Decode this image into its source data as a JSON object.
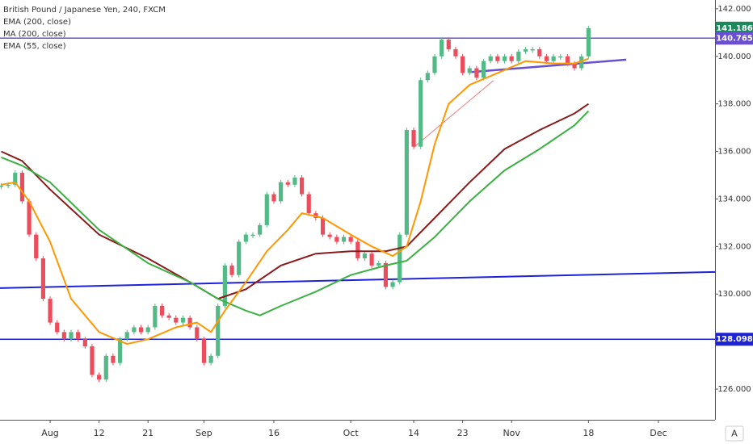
{
  "chart_data": {
    "type": "line",
    "title": "British Pound / Japanese Yen, 240, FXCM",
    "xlim": [
      -7.17,
      95.1
    ],
    "ylim": [
      124.71,
      142.37
    ],
    "yticks": [
      {
        "value": 126,
        "label": "126.000"
      },
      {
        "value": 128,
        "label": "128.000"
      },
      {
        "value": 130,
        "label": "130.000"
      },
      {
        "value": 132,
        "label": "132.000"
      },
      {
        "value": 134,
        "label": "134.000"
      },
      {
        "value": 136,
        "label": "136.000"
      },
      {
        "value": 138,
        "label": "138.000"
      },
      {
        "value": 140,
        "label": "140.000"
      },
      {
        "value": 142,
        "label": "142.000"
      }
    ],
    "xticks": [
      {
        "value": 0,
        "label": "Aug"
      },
      {
        "value": 7,
        "label": "12"
      },
      {
        "value": 14,
        "label": "21"
      },
      {
        "value": 22,
        "label": "Sep"
      },
      {
        "value": 32,
        "label": "16"
      },
      {
        "value": 43,
        "label": "Oct"
      },
      {
        "value": 52,
        "label": "14"
      },
      {
        "value": 59,
        "label": "23"
      },
      {
        "value": 66,
        "label": "Nov"
      },
      {
        "value": 77,
        "label": "18"
      },
      {
        "value": 87,
        "label": "Dec"
      }
    ],
    "grid": false,
    "series": [
      {
        "style": "candles",
        "up_color": "#53b987",
        "down_color": "#eb4d5c",
        "x": [
          -7,
          -6,
          -5,
          -4,
          -3,
          -2,
          -1,
          0,
          1,
          2,
          3,
          4,
          5,
          6,
          7,
          8,
          9,
          10,
          11,
          12,
          13,
          14,
          15,
          16,
          17,
          18,
          19,
          20,
          21,
          22,
          23,
          24,
          25,
          26,
          27,
          28,
          29,
          30,
          31,
          32,
          33,
          34,
          35,
          36,
          37,
          38,
          39,
          40,
          41,
          42,
          43,
          44,
          45,
          46,
          47,
          48,
          49,
          50,
          51,
          52,
          53,
          54,
          55,
          56,
          57,
          58,
          59,
          60,
          61,
          62,
          63,
          64,
          65,
          66,
          67,
          68,
          69,
          70,
          71,
          72,
          73,
          74,
          75,
          76,
          77
        ],
        "values": [
          134.56,
          134.6,
          135.1,
          133.9,
          132.5,
          131.5,
          129.8,
          128.8,
          128.4,
          128.1,
          128.4,
          128.1,
          127.8,
          126.6,
          126.4,
          127.4,
          127.1,
          128.1,
          128.4,
          128.6,
          128.4,
          128.6,
          129.5,
          129.1,
          129.0,
          128.8,
          129.0,
          128.6,
          128.1,
          127.1,
          127.4,
          129.5,
          131.2,
          130.8,
          132.2,
          132.5,
          132.5,
          132.9,
          134.2,
          133.9,
          134.7,
          134.6,
          134.9,
          134.2,
          133.4,
          133.2,
          132.5,
          132.4,
          132.2,
          132.4,
          132.2,
          131.5,
          131.7,
          131.2,
          131.3,
          130.3,
          130.5,
          132.5,
          136.9,
          136.2,
          139.0,
          139.3,
          140.0,
          140.7,
          140.3,
          140.0,
          139.3,
          139.5,
          139.1,
          139.8,
          140.0,
          139.8,
          140.0,
          139.8,
          140.2,
          140.3,
          140.3,
          140.0,
          139.8,
          140.0,
          140.0,
          139.7,
          139.5,
          140.0,
          141.186
        ]
      },
      {
        "name": "EMA (200, close)",
        "color": "#8b1a1a",
        "x": [
          -7,
          -4,
          0,
          7,
          14,
          20,
          24,
          28,
          33,
          38,
          43,
          48,
          51,
          55,
          60,
          65,
          70,
          75,
          77
        ],
        "values": [
          136.0,
          135.6,
          134.4,
          132.5,
          131.5,
          130.5,
          129.8,
          130.2,
          131.2,
          131.7,
          131.8,
          131.8,
          132.0,
          133.2,
          134.7,
          136.1,
          136.9,
          137.6,
          138.0
        ]
      },
      {
        "name": "MA (200, close)",
        "color": "#3cb043",
        "x": [
          -7,
          -4,
          0,
          7,
          14,
          20,
          24,
          28,
          30,
          33,
          38,
          43,
          48,
          51,
          55,
          60,
          65,
          70,
          75,
          77
        ],
        "values": [
          135.75,
          135.4,
          134.7,
          132.7,
          131.3,
          130.5,
          129.8,
          129.3,
          129.1,
          129.5,
          130.1,
          130.8,
          131.2,
          131.4,
          132.4,
          133.9,
          135.2,
          136.1,
          137.1,
          137.7
        ]
      },
      {
        "name": "EMA (55, close)",
        "color": "#ff9800",
        "x": [
          -7,
          -5,
          -3,
          0,
          3,
          7,
          11,
          14,
          18,
          21,
          23,
          25,
          28,
          31,
          34,
          36,
          39,
          43,
          46,
          49,
          51,
          53,
          55,
          57,
          60,
          64,
          68,
          72,
          75,
          77
        ],
        "values": [
          134.6,
          134.7,
          133.9,
          132.2,
          129.8,
          128.4,
          127.9,
          128.1,
          128.6,
          128.8,
          128.4,
          129.3,
          130.5,
          131.8,
          132.7,
          133.4,
          133.2,
          132.5,
          132.0,
          131.6,
          132.0,
          133.9,
          136.3,
          138.0,
          138.8,
          139.3,
          139.8,
          139.7,
          139.7,
          139.9
        ]
      }
    ],
    "last_price_color": "#1b8a5a",
    "hlines": [
      {
        "value": 140.765,
        "color": "#6a4fd1"
      },
      {
        "value": 128.098,
        "color": "#1e22d8"
      }
    ],
    "trendlines": [
      {
        "x": [
          -7.17,
          95.1
        ],
        "y": [
          130.25,
          130.93
        ],
        "color": "#1e22d8",
        "width": 2
      },
      {
        "x": [
          59.9,
          82.4
        ],
        "y": [
          139.33,
          139.86
        ],
        "color": "#6a4fd1",
        "width": 2.5
      },
      {
        "x": [
          52,
          63.4
        ],
        "y": [
          136.17,
          138.98
        ],
        "color": "#f08080",
        "width": 1
      }
    ]
  },
  "ui": {
    "scale_button": "A"
  }
}
